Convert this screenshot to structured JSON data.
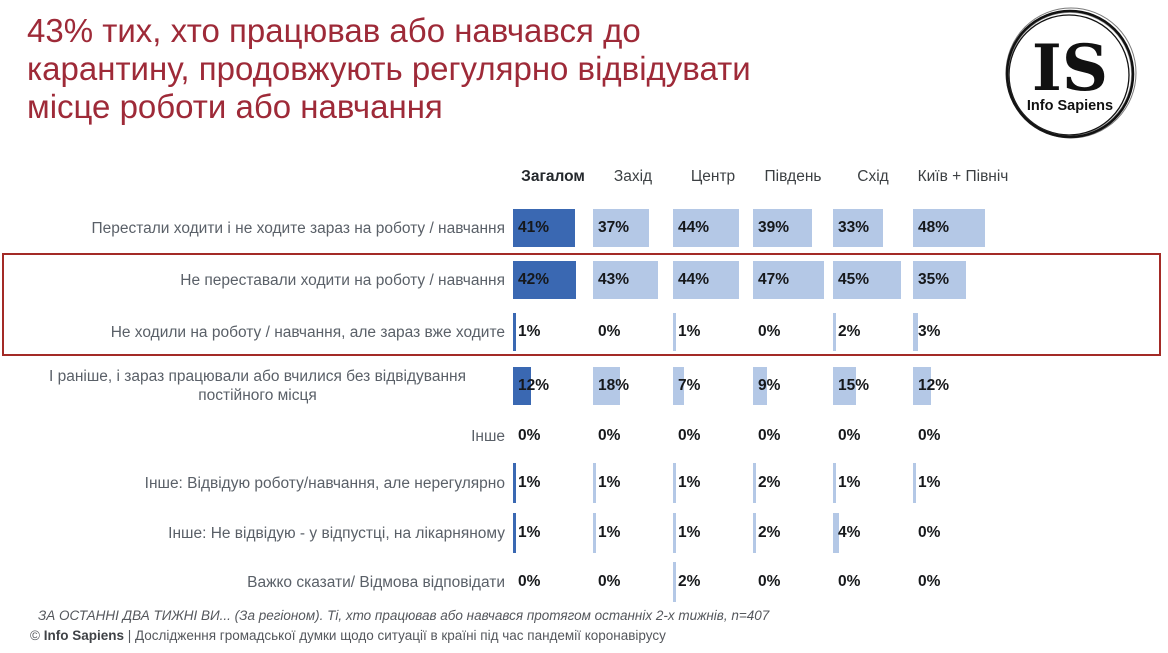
{
  "slide": {
    "title_lines": [
      "43% тих, хто працював або навчався до",
      "карантину, продовжують регулярно відвідувати",
      "місце роботи або навчання"
    ],
    "logo": {
      "monogram": "IS",
      "name": "Info Sapiens"
    }
  },
  "chart_data": {
    "type": "bar",
    "title": "43% тих, хто працював або навчався до карантину, продовжують регулярно відвідувати місце роботи або навчання",
    "unit": "%",
    "columns": [
      "Загалом",
      "Захід",
      "Центр",
      "Південь",
      "Схід",
      "Київ + Північ"
    ],
    "rows": [
      {
        "label": "Перестали ходити і не ходите зараз на роботу / навчання",
        "values": [
          41,
          37,
          44,
          39,
          33,
          48
        ],
        "highlighted": false
      },
      {
        "label": "Не переставали ходити на роботу / навчання",
        "values": [
          42,
          43,
          44,
          47,
          45,
          35
        ],
        "highlighted": true
      },
      {
        "label": "Не ходили на роботу / навчання, але зараз вже ходите",
        "values": [
          1,
          0,
          1,
          0,
          2,
          3
        ],
        "highlighted": true
      },
      {
        "label": "І раніше, і зараз працювали або вчилися без відвідування постійного місця",
        "values": [
          12,
          18,
          7,
          9,
          15,
          12
        ],
        "highlighted": false
      },
      {
        "label": "Інше",
        "values": [
          0,
          0,
          0,
          0,
          0,
          0
        ],
        "highlighted": false
      },
      {
        "label": "Інше: Відвідую роботу/навчання, але нерегулярно",
        "values": [
          1,
          1,
          1,
          2,
          1,
          1
        ],
        "highlighted": false
      },
      {
        "label": "Інше: Не відвідую - у відпустці, на лікарняному",
        "values": [
          1,
          1,
          1,
          2,
          4,
          0
        ],
        "highlighted": false
      },
      {
        "label": "Важко сказати/ Відмова відповідати",
        "values": [
          0,
          0,
          2,
          0,
          0,
          0
        ],
        "highlighted": false
      }
    ],
    "colors": {
      "total_column_bar": "#3A68B2",
      "region_column_bar": "#B4C8E6",
      "highlight_border": "#A32A26",
      "title_text": "#9E2A38"
    },
    "legend_position": "none",
    "grid": false
  },
  "footer": {
    "line1": "ЗА ОСТАННІ ДВА ТИЖНІ ВИ... (За регіоном). Ті, хто працював або навчався протягом останніх 2-х тижнів, n=407",
    "line2_prefix": "© ",
    "line2_brand": "Info Sapiens",
    "line2_rest": " | Дослідження громадської думки щодо ситуації в країні під час пандемії коронавірусу"
  }
}
